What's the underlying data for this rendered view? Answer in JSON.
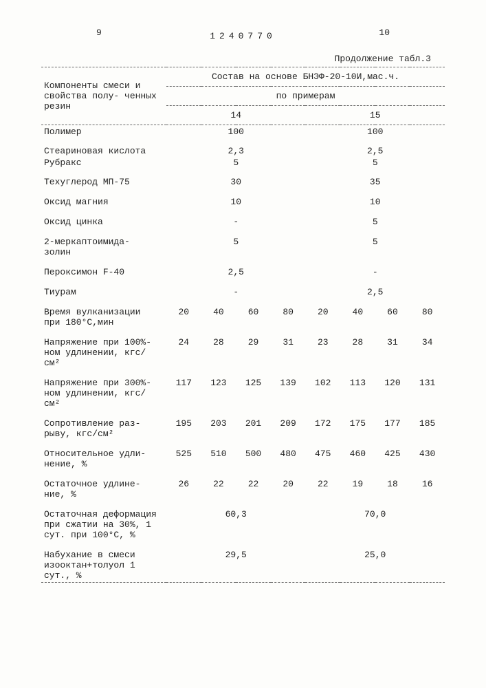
{
  "page_left": "9",
  "page_right": "10",
  "doc_number": "1240770",
  "continuation": "Продолжение табл.3",
  "header": {
    "col_label": "Компоненты смеси и свойства полу- ченных резин",
    "basis": "Состав на основе БНЭФ-20-10И,мас.ч.",
    "examples": "по примерам",
    "ex_a": "14",
    "ex_b": "15"
  },
  "comp": {
    "polymer": {
      "label": "Полимер",
      "a": "100",
      "b": "100"
    },
    "stearic": {
      "label": "Стеариновая кислота",
      "a": "2,3",
      "b": "2,5"
    },
    "rubraks": {
      "label": "Рубракс",
      "a": "5",
      "b": "5"
    },
    "carbon": {
      "label": "Техуглерод МП-75",
      "a": "30",
      "b": "35"
    },
    "mgo": {
      "label": "Оксид магния",
      "a": "10",
      "b": "10"
    },
    "zno": {
      "label": "Оксид цинка",
      "a": "-",
      "b": "5"
    },
    "merc": {
      "label": "2-меркаптоимида- золин",
      "a": "5",
      "b": "5"
    },
    "perox": {
      "label": "Пероксимон F-40",
      "a": "2,5",
      "b": "-"
    },
    "thiuram": {
      "label": "Тиурам",
      "a": "-",
      "b": "2,5"
    }
  },
  "vulc_time": {
    "label": "Время вулканизации при 180°С,мин",
    "a": [
      "20",
      "40",
      "60",
      "80"
    ],
    "b": [
      "20",
      "40",
      "60",
      "80"
    ]
  },
  "stress100": {
    "label": "Напряжение при 100%-ном удлинении, кгс/см²",
    "a": [
      "24",
      "28",
      "29",
      "31"
    ],
    "b": [
      "23",
      "28",
      "31",
      "34"
    ]
  },
  "stress300": {
    "label": "Напряжение при 300%-ном удлинении, кгс/см²",
    "a": [
      "117",
      "123",
      "125",
      "139"
    ],
    "b": [
      "102",
      "113",
      "120",
      "131"
    ]
  },
  "tear": {
    "label": "Сопротивление раз- рыву, кгс/см²",
    "a": [
      "195",
      "203",
      "201",
      "209"
    ],
    "b": [
      "172",
      "175",
      "177",
      "185"
    ]
  },
  "elong": {
    "label": "Относительное удли- нение, %",
    "a": [
      "525",
      "510",
      "500",
      "480"
    ],
    "b": [
      "475",
      "460",
      "425",
      "430"
    ]
  },
  "resid": {
    "label": "Остаточное удлине- ние, %",
    "a": [
      "26",
      "22",
      "22",
      "20"
    ],
    "b": [
      "22",
      "19",
      "18",
      "16"
    ]
  },
  "compset": {
    "label": "Остаточная деформация при сжатии на 30%, 1 сут. при 100°С, %",
    "a": "60,3",
    "b": "70,0"
  },
  "swell": {
    "label": "Набухание в смеси изооктан+толуол 1 сут., %",
    "a": "29,5",
    "b": "25,0"
  }
}
